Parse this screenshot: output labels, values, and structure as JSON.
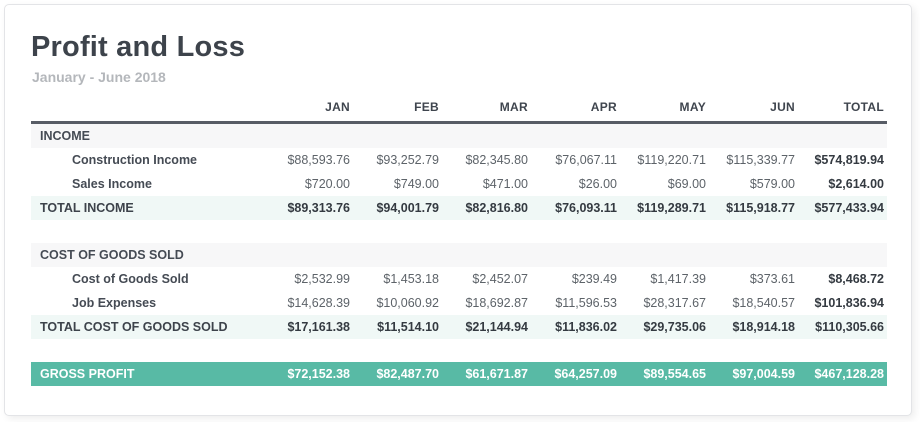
{
  "report": {
    "title": "Profit and Loss",
    "subtitle": "January - June 2018"
  },
  "colors": {
    "gross_profit_bar": "#58baa5",
    "total_row_bg": "#f0f8f6",
    "section_row_bg": "#f7f7f8",
    "header_rule": "#575c65",
    "title_text": "#3d434b",
    "subtitle_text": "#b4b7bb"
  },
  "table": {
    "columns": [
      "JAN",
      "FEB",
      "MAR",
      "APR",
      "MAY",
      "JUN",
      "TOTAL"
    ],
    "rows": [
      {
        "type": "section",
        "label": "INCOME",
        "values": [
          "",
          "",
          "",
          "",
          "",
          "",
          ""
        ]
      },
      {
        "type": "detail",
        "label": "Construction Income",
        "values": [
          "$88,593.76",
          "$93,252.79",
          "$82,345.80",
          "$76,067.11",
          "$119,220.71",
          "$115,339.77",
          "$574,819.94"
        ]
      },
      {
        "type": "detail",
        "label": "Sales Income",
        "values": [
          "$720.00",
          "$749.00",
          "$471.00",
          "$26.00",
          "$69.00",
          "$579.00",
          "$2,614.00"
        ]
      },
      {
        "type": "total",
        "label": "TOTAL INCOME",
        "values": [
          "$89,313.76",
          "$94,001.79",
          "$82,816.80",
          "$76,093.11",
          "$119,289.71",
          "$115,918.77",
          "$577,433.94"
        ]
      },
      {
        "type": "spacer",
        "label": "",
        "values": [
          "",
          "",
          "",
          "",
          "",
          "",
          ""
        ]
      },
      {
        "type": "section",
        "label": "COST OF GOODS SOLD",
        "values": [
          "",
          "",
          "",
          "",
          "",
          "",
          ""
        ]
      },
      {
        "type": "detail",
        "label": "Cost of Goods Sold",
        "values": [
          "$2,532.99",
          "$1,453.18",
          "$2,452.07",
          "$239.49",
          "$1,417.39",
          "$373.61",
          "$8,468.72"
        ]
      },
      {
        "type": "detail",
        "label": "Job Expenses",
        "values": [
          "$14,628.39",
          "$10,060.92",
          "$18,692.87",
          "$11,596.53",
          "$28,317.67",
          "$18,540.57",
          "$101,836.94"
        ]
      },
      {
        "type": "total",
        "label": "TOTAL COST OF GOODS SOLD",
        "values": [
          "$17,161.38",
          "$11,514.10",
          "$21,144.94",
          "$11,836.02",
          "$29,735.06",
          "$18,914.18",
          "$110,305.66"
        ]
      },
      {
        "type": "spacer",
        "label": "",
        "values": [
          "",
          "",
          "",
          "",
          "",
          "",
          ""
        ]
      },
      {
        "type": "gross",
        "label": "GROSS PROFIT",
        "values": [
          "$72,152.38",
          "$82,487.70",
          "$61,671.87",
          "$64,257.09",
          "$89,554.65",
          "$97,004.59",
          "$467,128.28"
        ]
      }
    ]
  }
}
